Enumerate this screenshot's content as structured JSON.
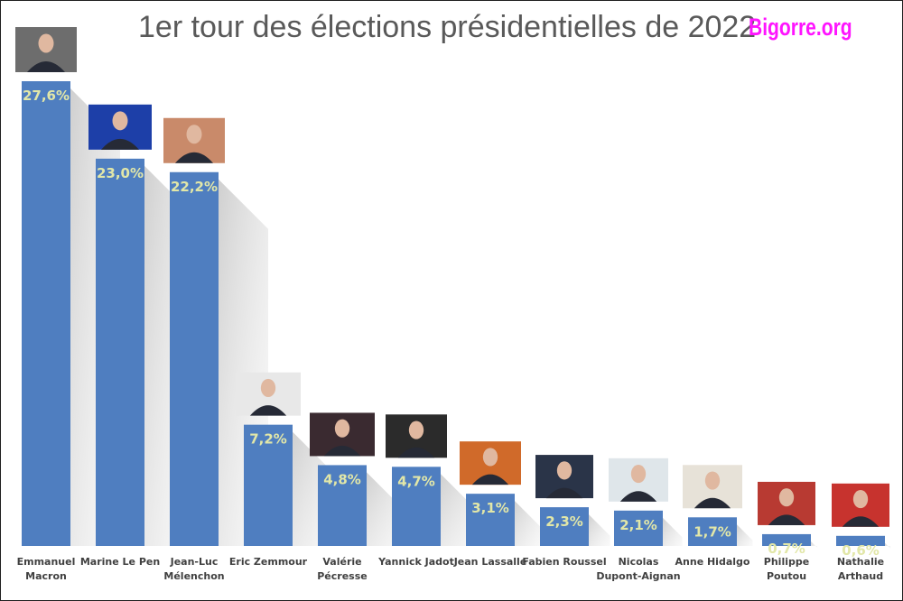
{
  "chart_data": {
    "type": "bar",
    "title": "1er tour des élections présidentielles de 2022",
    "watermark": "Bigorre.org",
    "xlabel": "",
    "ylabel": "",
    "ylim": [
      0,
      30
    ],
    "grid": false,
    "legend": "none",
    "bar_color": "#4f7ec0",
    "value_label_color": "#e2e7a8",
    "categories": [
      [
        "Emmanuel",
        "Macron"
      ],
      [
        "Marine Le Pen"
      ],
      [
        "Jean-Luc",
        "Mélenchon"
      ],
      [
        "Eric Zemmour"
      ],
      [
        "Valérie",
        "Pécresse"
      ],
      [
        "Yannick Jadot"
      ],
      [
        "Jean Lassalle"
      ],
      [
        "Fabien Roussel"
      ],
      [
        "Nicolas",
        "Dupont-Aignan"
      ],
      [
        "Anne Hidalgo"
      ],
      [
        "Philippe",
        "Poutou"
      ],
      [
        "Nathalie",
        "Arthaud"
      ]
    ],
    "values": [
      27.6,
      23.0,
      22.2,
      7.2,
      4.8,
      4.7,
      3.1,
      2.3,
      2.1,
      1.7,
      0.7,
      0.6
    ],
    "value_labels": [
      "27,6%",
      "23,0%",
      "22,2%",
      "7,2%",
      "4,8%",
      "4,7%",
      "3,1%",
      "2,3%",
      "2,1%",
      "1,7%",
      "0,7%",
      "0,6%"
    ]
  }
}
